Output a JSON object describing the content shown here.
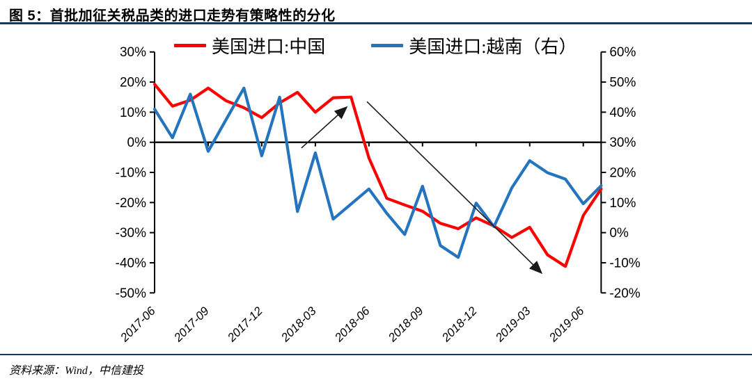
{
  "title": "图 5：首批加征关税品类的进口走势有策略性的分化",
  "source": "资料来源：Wind，中信建投",
  "colors": {
    "rule": "#17375E",
    "china_line": "#FE0000",
    "vietnam_line": "#2574BE",
    "axis": "#000000",
    "annotation": "#1a1a1a"
  },
  "legend": [
    {
      "label": "美国进口:中国",
      "series": "china"
    },
    {
      "label": "美国进口:越南（右）",
      "series": "vietnam"
    }
  ],
  "chart_data": {
    "type": "line",
    "x": [
      "2017-06",
      "2017-07",
      "2017-08",
      "2017-09",
      "2017-10",
      "2017-11",
      "2017-12",
      "2018-01",
      "2018-02",
      "2018-03",
      "2018-04",
      "2018-05",
      "2018-06",
      "2018-07",
      "2018-08",
      "2018-09",
      "2018-10",
      "2018-11",
      "2018-12",
      "2019-01",
      "2019-02",
      "2019-03",
      "2019-04",
      "2019-05",
      "2019-06",
      "2019-07"
    ],
    "series": [
      {
        "name": "美国进口:中国",
        "axis": "left",
        "values": [
          19.3,
          12.0,
          14.0,
          18.0,
          13.8,
          11.5,
          8.2,
          13.1,
          16.6,
          10.0,
          14.8,
          15.0,
          -5.2,
          -18.6,
          -20.8,
          -22.9,
          -26.9,
          -28.7,
          -25.1,
          -27.8,
          -31.6,
          -28.2,
          -37.4,
          -41.2,
          -24.3,
          -15.5
        ]
      },
      {
        "name": "美国进口:越南（右）",
        "axis": "right",
        "values": [
          41.0,
          31.5,
          46.0,
          27.0,
          37.5,
          48.0,
          25.5,
          45.0,
          7.0,
          26.5,
          4.5,
          9.5,
          14.5,
          6.4,
          -0.6,
          15.4,
          -4.3,
          -8.2,
          9.8,
          2.0,
          14.9,
          23.9,
          19.9,
          17.8,
          9.6,
          15.6
        ]
      }
    ],
    "x_tick_labels": [
      "2017-06",
      "2017-09",
      "2017-12",
      "2018-03",
      "2018-06",
      "2018-09",
      "2018-12",
      "2019-03",
      "2019-06"
    ],
    "x_tick_step_months": 3,
    "left_axis": {
      "ticks": [
        "30%",
        "20%",
        "10%",
        "0%",
        "-10%",
        "-20%",
        "-30%",
        "-40%",
        "-50%"
      ],
      "values": [
        30,
        20,
        10,
        0,
        -10,
        -20,
        -30,
        -40,
        -50
      ],
      "lim": [
        -50,
        30
      ]
    },
    "right_axis": {
      "ticks": [
        "60%",
        "50%",
        "40%",
        "30%",
        "20%",
        "10%",
        "0%",
        "-10%",
        "-20%"
      ],
      "values": [
        60,
        50,
        40,
        30,
        20,
        10,
        0,
        -10,
        -20
      ],
      "lim": [
        -20,
        60
      ]
    },
    "grid": false,
    "legend_position": "top",
    "annotations": [
      {
        "kind": "arrow",
        "from_month": 8.22,
        "from_value": -1.9,
        "to_month": 10.72,
        "to_value": 11.5
      },
      {
        "kind": "arrow",
        "from_month": 11.89,
        "from_value": 13.5,
        "to_month": 21.63,
        "to_value": -43.2
      }
    ]
  }
}
